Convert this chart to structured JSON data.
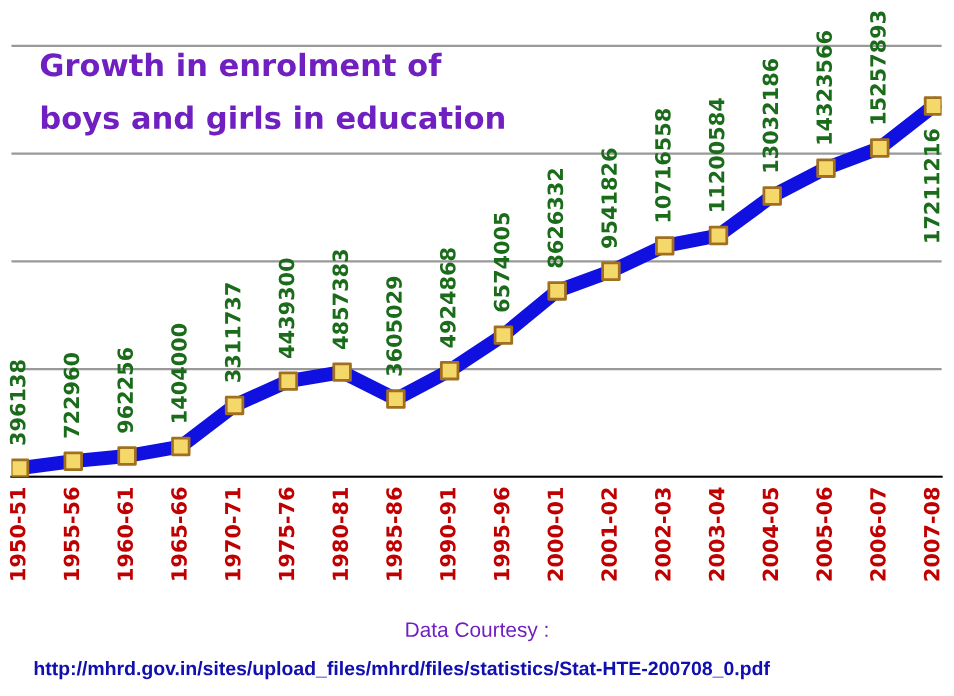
{
  "chart_data": {
    "type": "line",
    "title": "Growth in enrolment of\nboys and girls in education",
    "categories": [
      "1950-51",
      "1955-56",
      "1960-61",
      "1965-66",
      "1970-71",
      "1975-76",
      "1980-81",
      "1985-86",
      "1990-91",
      "1995-96",
      "2000-01",
      "2001-02",
      "2002-03",
      "2003-04",
      "2004-05",
      "2005-06",
      "2006-07",
      "2007-08"
    ],
    "series": [
      {
        "color": "#1010e0",
        "values": [
          396138,
          722960,
          962256,
          1404000,
          3311737,
          4439300,
          4857383,
          3605029,
          4924868,
          6574005,
          8626332,
          9541826,
          10716558,
          11200584,
          13032186,
          14323566,
          15257893,
          17211216
        ]
      }
    ],
    "data_labels": true,
    "marker": "square",
    "line_style": "solid",
    "grid": "y",
    "tick_labels": "x",
    "annotations": [
      "Data Courtesy :",
      "http://mhrd.gov.in/sites/upload_files/mhrd/files/statistics/Stat-HTE-200708_0.pdf"
    ]
  }
}
